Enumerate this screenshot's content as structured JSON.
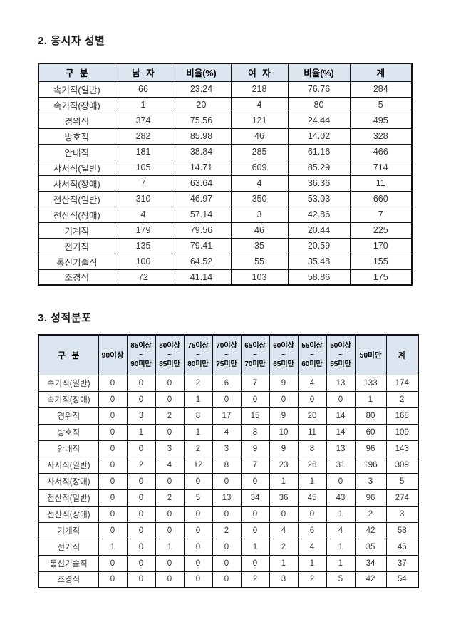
{
  "colors": {
    "header_bg": "#dce6f1",
    "border": "#111111",
    "body_text": "#333333"
  },
  "gender_section": {
    "title": "2. 응시자 성별",
    "columns": [
      "구 분",
      "남 자",
      "비율(%)",
      "여 자",
      "비율(%)",
      "계"
    ],
    "rows": [
      [
        "속기직(일반)",
        "66",
        "23.24",
        "218",
        "76.76",
        "284"
      ],
      [
        "속기직(장애)",
        "1",
        "20",
        "4",
        "80",
        "5"
      ],
      [
        "경위직",
        "374",
        "75.56",
        "121",
        "24.44",
        "495"
      ],
      [
        "방호직",
        "282",
        "85.98",
        "46",
        "14.02",
        "328"
      ],
      [
        "안내직",
        "181",
        "38.84",
        "285",
        "61.16",
        "466"
      ],
      [
        "사서직(일반)",
        "105",
        "14.71",
        "609",
        "85.29",
        "714"
      ],
      [
        "사서직(장애)",
        "7",
        "63.64",
        "4",
        "36.36",
        "11"
      ],
      [
        "전산직(일반)",
        "310",
        "46.97",
        "350",
        "53.03",
        "660"
      ],
      [
        "전산직(장애)",
        "4",
        "57.14",
        "3",
        "42.86",
        "7"
      ],
      [
        "기계직",
        "179",
        "79.56",
        "46",
        "20.44",
        "225"
      ],
      [
        "전기직",
        "135",
        "79.41",
        "35",
        "20.59",
        "170"
      ],
      [
        "통신기술직",
        "100",
        "64.52",
        "55",
        "35.48",
        "155"
      ],
      [
        "조경직",
        "72",
        "41.14",
        "103",
        "58.86",
        "175"
      ]
    ]
  },
  "score_section": {
    "title": "3. 성적분포",
    "col_category": "구 분",
    "col_90": "90이상",
    "range_columns": [
      {
        "upper": "85이상",
        "tilde": "~",
        "lower": "90미만"
      },
      {
        "upper": "80이상",
        "tilde": "~",
        "lower": "85미만"
      },
      {
        "upper": "75이상",
        "tilde": "~",
        "lower": "80미만"
      },
      {
        "upper": "70이상",
        "tilde": "~",
        "lower": "75미만"
      },
      {
        "upper": "65이상",
        "tilde": "~",
        "lower": "70미만"
      },
      {
        "upper": "60이상",
        "tilde": "~",
        "lower": "65미만"
      },
      {
        "upper": "55이상",
        "tilde": "~",
        "lower": "60미만"
      },
      {
        "upper": "50이상",
        "tilde": "~",
        "lower": "55미만"
      }
    ],
    "col_under50": "50미만",
    "col_total": "계",
    "rows": [
      [
        "속기직(일반)",
        "0",
        "0",
        "0",
        "2",
        "6",
        "7",
        "9",
        "4",
        "13",
        "133",
        "174"
      ],
      [
        "속기직(장애)",
        "0",
        "0",
        "0",
        "1",
        "0",
        "0",
        "0",
        "0",
        "0",
        "1",
        "2"
      ],
      [
        "경위직",
        "0",
        "3",
        "2",
        "8",
        "17",
        "15",
        "9",
        "20",
        "14",
        "80",
        "168"
      ],
      [
        "방호직",
        "0",
        "1",
        "0",
        "1",
        "4",
        "8",
        "10",
        "11",
        "14",
        "60",
        "109"
      ],
      [
        "안내직",
        "0",
        "0",
        "3",
        "2",
        "3",
        "9",
        "9",
        "8",
        "13",
        "96",
        "143"
      ],
      [
        "사서직(일반)",
        "0",
        "2",
        "4",
        "12",
        "8",
        "7",
        "23",
        "26",
        "31",
        "196",
        "309"
      ],
      [
        "사서직(장애)",
        "0",
        "0",
        "0",
        "0",
        "0",
        "0",
        "1",
        "1",
        "0",
        "3",
        "5"
      ],
      [
        "전산직(일반)",
        "0",
        "0",
        "2",
        "5",
        "13",
        "34",
        "36",
        "45",
        "43",
        "96",
        "274"
      ],
      [
        "전산직(장애)",
        "0",
        "0",
        "0",
        "0",
        "0",
        "0",
        "0",
        "0",
        "1",
        "2",
        "3"
      ],
      [
        "기계직",
        "0",
        "0",
        "0",
        "0",
        "2",
        "0",
        "4",
        "6",
        "4",
        "42",
        "58"
      ],
      [
        "전기직",
        "1",
        "0",
        "1",
        "0",
        "0",
        "1",
        "2",
        "4",
        "1",
        "35",
        "45"
      ],
      [
        "통신기술직",
        "0",
        "0",
        "0",
        "0",
        "0",
        "0",
        "1",
        "1",
        "1",
        "34",
        "37"
      ],
      [
        "조경직",
        "0",
        "0",
        "0",
        "0",
        "0",
        "2",
        "3",
        "2",
        "5",
        "42",
        "54"
      ]
    ]
  }
}
